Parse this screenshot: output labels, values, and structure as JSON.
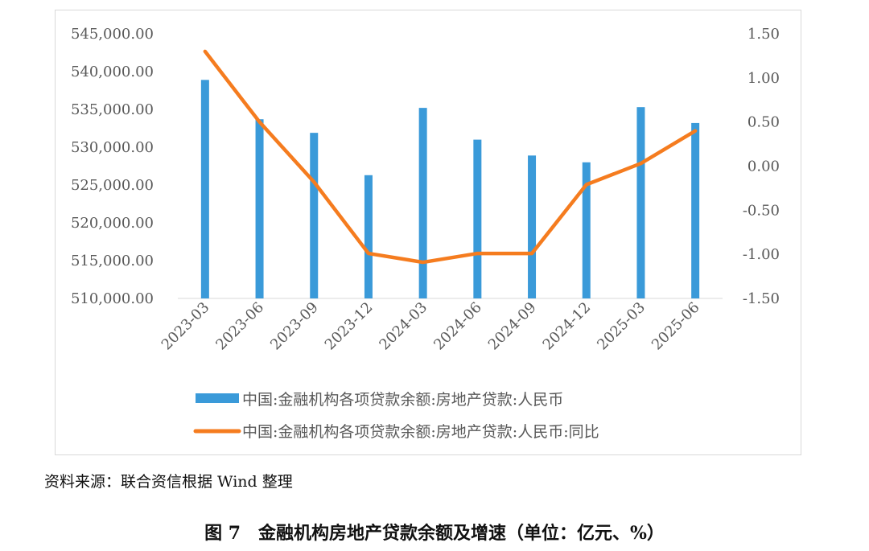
{
  "chart_data": {
    "type": "bar+line",
    "categories": [
      "2023-03",
      "2023-06",
      "2023-09",
      "2023-12",
      "2024-03",
      "2024-06",
      "2024-09",
      "2024-12",
      "2025-03",
      "2025-06"
    ],
    "series": [
      {
        "name": "中国:金融机构各项贷款余额:房地产贷款:人民币",
        "type": "bar",
        "axis": "left",
        "color": "#3a9ad9",
        "values": [
          538900,
          533700,
          531900,
          526300,
          535200,
          531000,
          528900,
          528000,
          535300,
          533200
        ]
      },
      {
        "name": "中国:金融机构各项贷款余额:房地产贷款:人民币:同比",
        "type": "line",
        "axis": "right",
        "color": "#f57c1f",
        "values": [
          1.3,
          0.5,
          -0.18,
          -0.99,
          -1.09,
          -0.99,
          -0.99,
          -0.21,
          0.03,
          0.4
        ]
      }
    ],
    "left_axis": {
      "ylim": [
        510000,
        545000
      ],
      "ticks": [
        "510,000.00",
        "515,000.00",
        "520,000.00",
        "525,000.00",
        "530,000.00",
        "535,000.00",
        "540,000.00",
        "545,000.00"
      ]
    },
    "right_axis": {
      "ylim": [
        -1.5,
        1.5
      ],
      "ticks": [
        "-1.50",
        "-1.00",
        "-0.50",
        "0.00",
        "0.50",
        "1.00",
        "1.50"
      ]
    },
    "legend_position": "bottom",
    "grid": false
  },
  "source_note": "资料来源：联合资信根据 Wind 整理",
  "caption": "图 7　金融机构房地产贷款余额及增速（单位：亿元、%）"
}
